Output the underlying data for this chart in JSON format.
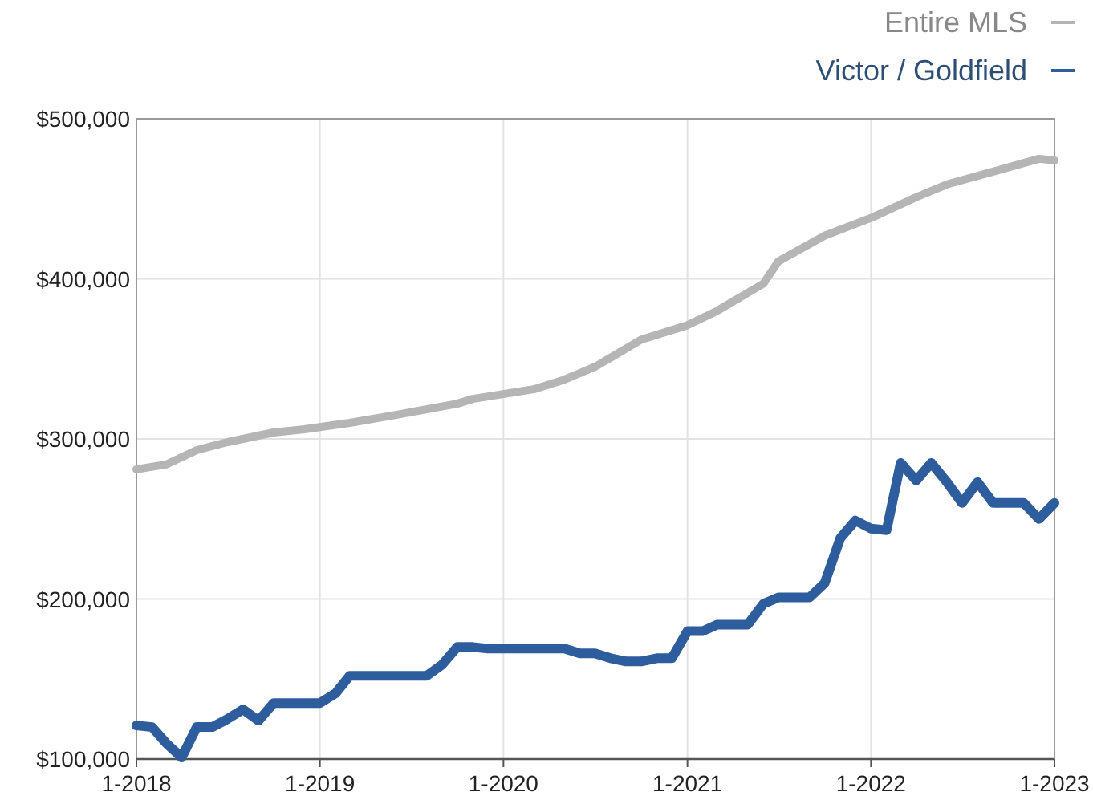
{
  "chart_data": {
    "type": "line",
    "ylim": [
      100000,
      500000
    ],
    "yticks": [
      {
        "value": 100000,
        "label": "$100,000"
      },
      {
        "value": 200000,
        "label": "$200,000"
      },
      {
        "value": 300000,
        "label": "$300,000"
      },
      {
        "value": 400000,
        "label": "$400,000"
      },
      {
        "value": 500000,
        "label": "$500,000"
      }
    ],
    "xlim": [
      "2018-01",
      "2023-01"
    ],
    "xticks": [
      {
        "value": "2018-01",
        "label": "1-2018"
      },
      {
        "value": "2019-01",
        "label": "1-2019"
      },
      {
        "value": "2020-01",
        "label": "1-2020"
      },
      {
        "value": "2021-01",
        "label": "1-2021"
      },
      {
        "value": "2022-01",
        "label": "1-2022"
      },
      {
        "value": "2023-01",
        "label": "1-2023"
      }
    ],
    "grid": true,
    "legend": "top right",
    "marker": "none",
    "line_style": "solid",
    "series": [
      {
        "name": "Entire MLS",
        "color": "#b5b5b5",
        "x": [
          "2018-01",
          "2018-03",
          "2018-05",
          "2018-07",
          "2018-10",
          "2018-12",
          "2019-03",
          "2019-06",
          "2019-10",
          "2019-11",
          "2020-03",
          "2020-05",
          "2020-07",
          "2020-10",
          "2021-01",
          "2021-03",
          "2021-06",
          "2021-07",
          "2021-10",
          "2022-01",
          "2022-04",
          "2022-06",
          "2022-09",
          "2022-12",
          "2023-01"
        ],
        "values": [
          281000,
          284000,
          293000,
          298000,
          304000,
          306000,
          310000,
          315000,
          322000,
          325000,
          331000,
          337000,
          345000,
          362000,
          371000,
          380000,
          397000,
          411000,
          427000,
          438000,
          451000,
          459000,
          467000,
          475000,
          474000
        ]
      },
      {
        "name": "Victor / Goldfield",
        "color": "#2e5d9e",
        "x": [
          "2018-01",
          "2018-02",
          "2018-03",
          "2018-04",
          "2018-05",
          "2018-06",
          "2018-07",
          "2018-08",
          "2018-09",
          "2018-10",
          "2018-11",
          "2018-12",
          "2019-01",
          "2019-02",
          "2019-03",
          "2019-04",
          "2019-05",
          "2019-06",
          "2019-07",
          "2019-08",
          "2019-09",
          "2019-10",
          "2019-11",
          "2019-12",
          "2020-01",
          "2020-02",
          "2020-03",
          "2020-04",
          "2020-05",
          "2020-06",
          "2020-07",
          "2020-08",
          "2020-09",
          "2020-10",
          "2020-11",
          "2020-12",
          "2021-01",
          "2021-02",
          "2021-03",
          "2021-04",
          "2021-05",
          "2021-06",
          "2021-07",
          "2021-08",
          "2021-09",
          "2021-10",
          "2021-11",
          "2021-12",
          "2022-01",
          "2022-02",
          "2022-03",
          "2022-04",
          "2022-05",
          "2022-06",
          "2022-07",
          "2022-08",
          "2022-09",
          "2022-10",
          "2022-11",
          "2022-12",
          "2023-01"
        ],
        "values": [
          121000,
          120000,
          110000,
          101000,
          120000,
          120000,
          125000,
          131000,
          124000,
          135000,
          135000,
          135000,
          135000,
          141000,
          152000,
          152000,
          152000,
          152000,
          152000,
          152000,
          159000,
          170000,
          170000,
          169000,
          169000,
          169000,
          169000,
          169000,
          169000,
          166000,
          166000,
          163000,
          161000,
          161000,
          163000,
          163000,
          180000,
          180000,
          184000,
          184000,
          184000,
          197000,
          201000,
          201000,
          201000,
          210000,
          238000,
          249000,
          244000,
          243000,
          285000,
          274000,
          285000,
          273000,
          260000,
          273000,
          260000,
          260000,
          260000,
          250000,
          260000
        ]
      }
    ]
  }
}
